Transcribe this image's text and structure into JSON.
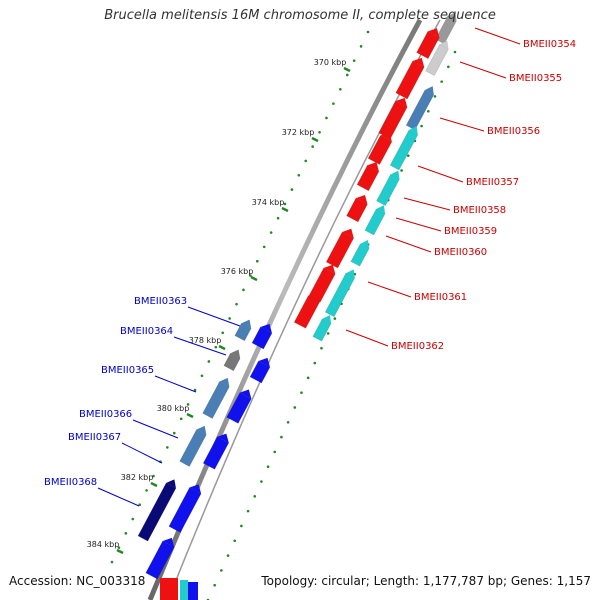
{
  "title": "Brucella melitensis 16M chromosome II, complete sequence",
  "footer": {
    "accession": "Accession: NC_003318",
    "topology": "Topology: circular; Length: 1,177,787 bp; Genes: 1,157"
  },
  "colors": {
    "forward_gene": "#ee1111",
    "reverse_gene": "#1111ee",
    "forward_label": "#cc0000",
    "reverse_label": "#0000cc",
    "cog_cyan": "#22cccc",
    "cog_steel": "#4a7fb5",
    "cog_navy": "#0a0a77",
    "backbone": "#888888",
    "tick_green": "#228822"
  },
  "ticks": [
    "370 kbp",
    "372 kbp",
    "374 kbp",
    "376 kbp",
    "378 kbp",
    "380 kbp",
    "382 kbp",
    "384 kbp"
  ],
  "forward_genes": [
    "BMEII0354",
    "BMEII0355",
    "BMEII0356",
    "BMEII0357",
    "BMEII0358",
    "BMEII0359",
    "BMEII0360",
    "BMEII0361",
    "BMEII0362"
  ],
  "reverse_genes": [
    "BMEII0363",
    "BMEII0364",
    "BMEII0365",
    "BMEII0366",
    "BMEII0367",
    "BMEII0368"
  ]
}
